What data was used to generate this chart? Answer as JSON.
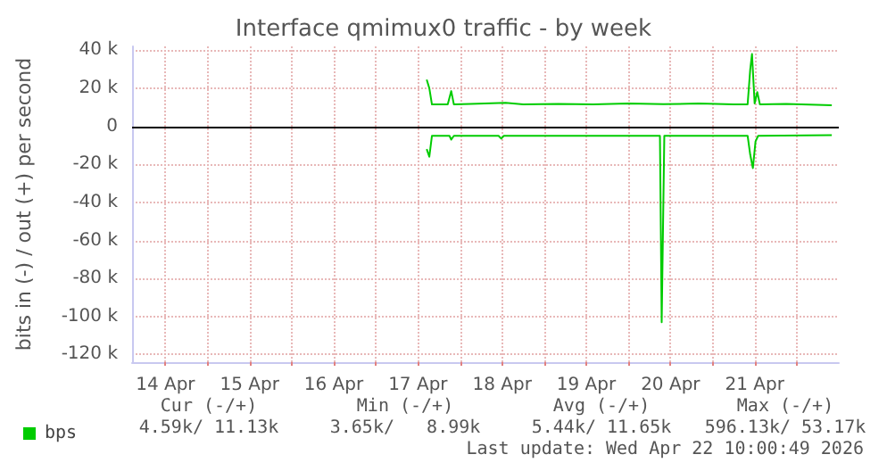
{
  "chart_data": {
    "type": "line",
    "title": "Interface qmimux0 traffic - by week",
    "ylabel": "bits in (-) / out (+) per second",
    "xlim": [
      "2026-04-14T02:30",
      "2026-04-22T12:00"
    ],
    "xticks": [
      {
        "value": "2026-04-14T12:00",
        "label": "14 Apr"
      },
      {
        "value": "2026-04-15T00:00",
        "label": null
      },
      {
        "value": "2026-04-15T12:00",
        "label": "15 Apr"
      },
      {
        "value": "2026-04-16T00:00",
        "label": null
      },
      {
        "value": "2026-04-16T12:00",
        "label": "16 Apr"
      },
      {
        "value": "2026-04-17T00:00",
        "label": null
      },
      {
        "value": "2026-04-17T12:00",
        "label": "17 Apr"
      },
      {
        "value": "2026-04-18T00:00",
        "label": null
      },
      {
        "value": "2026-04-18T12:00",
        "label": "18 Apr"
      },
      {
        "value": "2026-04-19T00:00",
        "label": null
      },
      {
        "value": "2026-04-19T12:00",
        "label": "19 Apr"
      },
      {
        "value": "2026-04-20T00:00",
        "label": null
      },
      {
        "value": "2026-04-20T12:00",
        "label": "20 Apr"
      },
      {
        "value": "2026-04-21T00:00",
        "label": null
      },
      {
        "value": "2026-04-21T12:00",
        "label": "21 Apr"
      },
      {
        "value": "2026-04-22T00:00",
        "label": null
      }
    ],
    "ylim": [
      -124000,
      42000
    ],
    "yticks": [
      {
        "value": 40000,
        "label": "40 k"
      },
      {
        "value": 20000,
        "label": "20 k"
      },
      0,
      {
        "value": -20000,
        "label": "-20 k"
      },
      {
        "value": -40000,
        "label": "-40 k"
      },
      {
        "value": -60000,
        "label": "-60 k"
      },
      {
        "value": -80000,
        "label": "-80 k"
      },
      {
        "value": -100000,
        "label": "-100 k"
      },
      {
        "value": -120000,
        "label": "-120 k"
      }
    ],
    "grid": true,
    "legend": "bottom left",
    "marker": "none",
    "line_style": "solid",
    "ref_lines": [
      {
        "axis": "y",
        "value": 0,
        "label": null,
        "color": "#000000"
      }
    ],
    "series": [
      {
        "name": "bps",
        "color": "#00cc00",
        "x": [
          "2026-04-17T14:30",
          "2026-04-17T15:15",
          "2026-04-17T16:00",
          "2026-04-17T20:30",
          "2026-04-17T21:30",
          "2026-04-17T22:15",
          "2026-04-18T03:00",
          "2026-04-18T13:00",
          "2026-04-18T18:00",
          "2026-04-19T04:00",
          "2026-04-19T14:00",
          "2026-04-20T00:00",
          "2026-04-20T10:00",
          "2026-04-20T20:00",
          "2026-04-21T06:00",
          "2026-04-21T10:00",
          "2026-04-21T10:45",
          "2026-04-21T11:15",
          "2026-04-21T12:00",
          "2026-04-21T12:45",
          "2026-04-21T13:30",
          "2026-04-21T21:00",
          "2026-04-22T10:00"
        ],
        "values": [
          24500,
          20000,
          11500,
          11500,
          18500,
          11500,
          11800,
          12300,
          11500,
          11800,
          11500,
          12000,
          11600,
          12000,
          11500,
          11500,
          30000,
          38000,
          12000,
          18000,
          11500,
          11800,
          11100
        ]
      },
      {
        "color": "#00cc00",
        "x": [
          "2026-04-17T14:30",
          "2026-04-17T15:15",
          "2026-04-17T16:00",
          "2026-04-17T21:00",
          "2026-04-17T21:30",
          "2026-04-17T22:15",
          "2026-04-18T11:00",
          "2026-04-18T11:45",
          "2026-04-18T12:30",
          "2026-04-19T14:00",
          "2026-04-20T09:00",
          "2026-04-20T09:30",
          "2026-04-20T10:15",
          "2026-04-20T20:00",
          "2026-04-21T10:00",
          "2026-04-21T10:45",
          "2026-04-21T11:30",
          "2026-04-21T12:15",
          "2026-04-21T13:00",
          "2026-04-22T10:00"
        ],
        "values": [
          -12000,
          -16000,
          -5000,
          -5000,
          -7000,
          -5000,
          -5000,
          -6500,
          -5000,
          -5000,
          -5000,
          -103000,
          -5000,
          -5000,
          -5000,
          -15000,
          -22000,
          -8000,
          -5000,
          -4600
        ]
      }
    ],
    "annotations": [
      "Cur (-/+)",
      "Min (-/+)",
      "Avg (-/+)",
      "Max (-/+)",
      "4.59k/ 11.13k",
      "3.65k/   8.99k",
      "5.44k/ 11.65k",
      "596.13k/ 53.17k",
      "Last update: Wed Apr 22 10:00:49 2026"
    ]
  }
}
